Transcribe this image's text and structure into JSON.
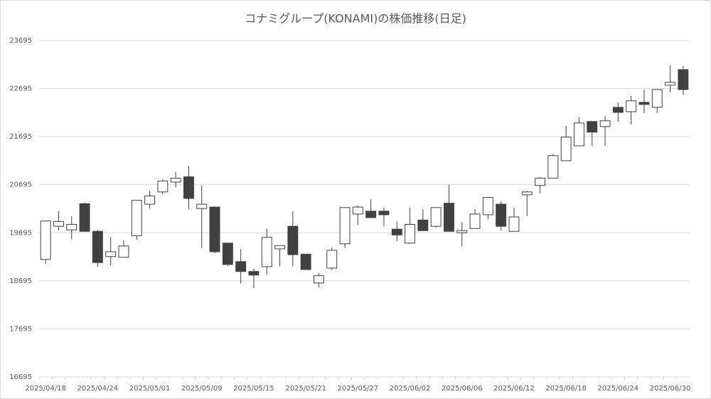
{
  "chart_data": {
    "type": "candlestick",
    "title": "コナミグループ(KONAMI)の株価推移(日足)",
    "categories": [
      "2025/04/18",
      null,
      null,
      null,
      "2025/04/24",
      null,
      null,
      null,
      "2025/05/01",
      null,
      null,
      null,
      "2025/05/09",
      null,
      null,
      null,
      "2025/05/15",
      null,
      null,
      null,
      "2025/05/21",
      null,
      null,
      null,
      "2025/05/27",
      null,
      null,
      null,
      "2025/06/02",
      null,
      null,
      null,
      "2025/06/06",
      null,
      null,
      null,
      "2025/06/12",
      null,
      null,
      null,
      "2025/06/18",
      null,
      null,
      null,
      "2025/06/24",
      null,
      null,
      null,
      "2025/06/30",
      null
    ],
    "open": [
      19140,
      19830,
      19755,
      20300,
      19725,
      19200,
      19185,
      19635,
      20290,
      20545,
      20750,
      20860,
      20200,
      20230,
      19480,
      19095,
      18890,
      18990,
      19360,
      19830,
      19250,
      18650,
      18960,
      19465,
      20085,
      20145,
      20145,
      19770,
      19480,
      19960,
      19830,
      20310,
      19695,
      19785,
      20070,
      20290,
      19725,
      20485,
      20680,
      20830,
      21195,
      21505,
      22010,
      21905,
      22305,
      22215,
      22410,
      22305,
      22765,
      23090
    ],
    "high": [
      19940,
      20150,
      20040,
      20320,
      19755,
      19600,
      19540,
      20370,
      20570,
      20800,
      20960,
      21080,
      20680,
      20230,
      19480,
      19360,
      18950,
      19780,
      19430,
      20140,
      19250,
      18860,
      19390,
      20220,
      20260,
      20395,
      20220,
      19930,
      20220,
      20180,
      20220,
      20695,
      19920,
      20190,
      20440,
      20350,
      20220,
      20575,
      20855,
      21330,
      21920,
      22100,
      22010,
      22130,
      22410,
      22540,
      22675,
      22675,
      23180,
      23165
    ],
    "low": [
      19050,
      19740,
      19560,
      19710,
      18990,
      19020,
      19185,
      19550,
      20200,
      20500,
      20640,
      20190,
      19380,
      19270,
      19005,
      18640,
      18545,
      18830,
      19000,
      19000,
      18930,
      18560,
      18920,
      19380,
      19860,
      20010,
      19830,
      19520,
      19460,
      19740,
      19800,
      19725,
      19410,
      19785,
      19980,
      19740,
      19725,
      20040,
      20515,
      20830,
      21195,
      21505,
      21505,
      21505,
      22000,
      21950,
      22185,
      22185,
      22630,
      22570
    ],
    "close": [
      19940,
      19930,
      19870,
      19725,
      19075,
      19300,
      19420,
      20370,
      20460,
      20770,
      20830,
      20410,
      20290,
      19300,
      19035,
      18890,
      18815,
      19600,
      19430,
      19240,
      18930,
      18800,
      19330,
      20220,
      20230,
      20010,
      20070,
      19650,
      19870,
      19740,
      20220,
      19725,
      19740,
      20085,
      20430,
      19830,
      20025,
      20545,
      20830,
      21300,
      21685,
      21980,
      21790,
      22025,
      22200,
      22440,
      22365,
      22675,
      22825,
      22675
    ],
    "up_color": "#ffffff",
    "down_color": "#404040",
    "edge_color": "#404040",
    "ylim": [
      16695,
      23695
    ],
    "yticks": [
      16695,
      17695,
      18695,
      19695,
      20695,
      21695,
      22695,
      23695
    ],
    "grid": true
  }
}
